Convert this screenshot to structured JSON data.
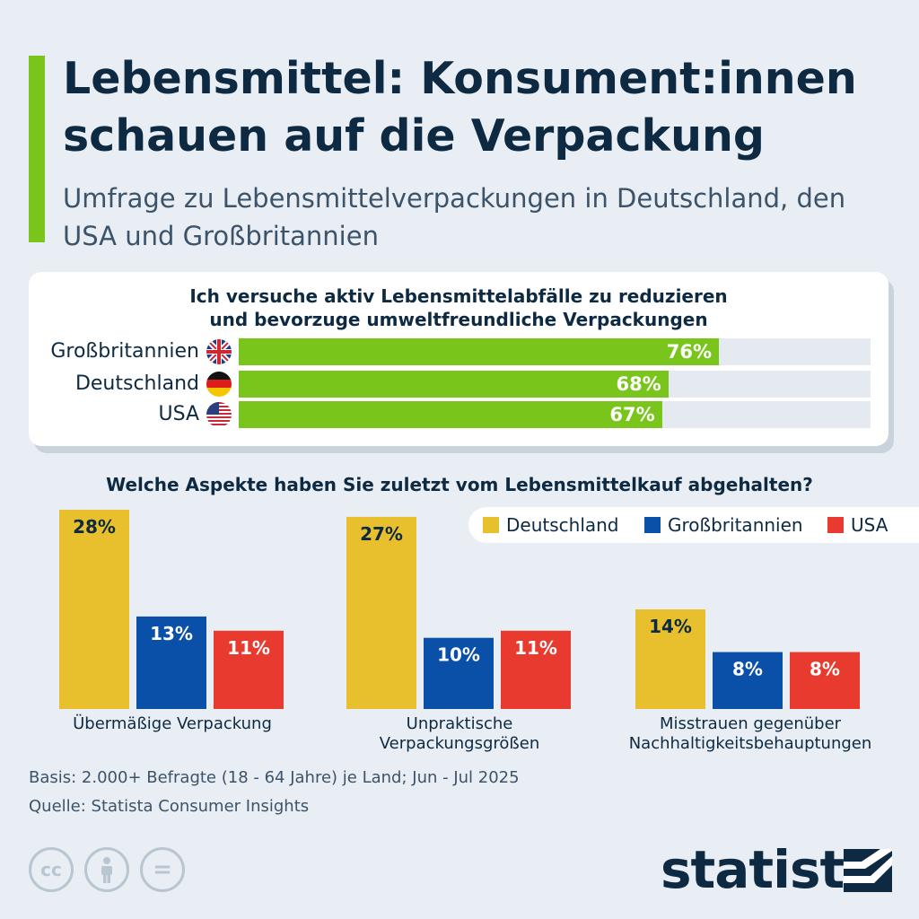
{
  "title": "Lebensmittel: Konsument:innen schauen auf die Verpackung",
  "subtitle": "Umfrage zu Lebensmittelverpackungen in Deutschland, den USA und Großbritannien",
  "colors": {
    "accent": "#7ac51c",
    "deutschland": "#e8bf2c",
    "grossbritannien": "#0a4fa8",
    "usa": "#e83a2e",
    "text": "#0d2a42"
  },
  "chart_data": [
    {
      "type": "bar",
      "orientation": "horizontal",
      "title": "Ich versuche aktiv Lebensmittelabfälle zu reduzieren und bevorzuge umweltfreundliche Verpackungen",
      "categories": [
        "Großbritannien",
        "Deutschland",
        "USA"
      ],
      "values": [
        76,
        68,
        67
      ],
      "value_labels": [
        "76%",
        "68%",
        "67%"
      ],
      "icons": [
        "flag-uk-icon",
        "flag-germany-icon",
        "flag-usa-icon"
      ],
      "xlim": [
        0,
        100
      ]
    },
    {
      "type": "bar",
      "title": "Welche Aspekte haben Sie zuletzt vom Lebensmittelkauf abgehalten?",
      "categories": [
        "Übermäßige Verpackung",
        "Unpraktische Verpackungsgrößen",
        "Misstrauen gegenüber Nachhaltigkeitsbehauptungen"
      ],
      "category_lines": [
        [
          "Übermäßige Verpackung"
        ],
        [
          "Unpraktische",
          "Verpackungsgrößen"
        ],
        [
          "Misstrauen gegenüber",
          "Nachhaltigkeitsbehauptungen"
        ]
      ],
      "series": [
        {
          "name": "Deutschland",
          "values": [
            28,
            27,
            14
          ],
          "labels": [
            "28%",
            "27%",
            "14%"
          ]
        },
        {
          "name": "Großbritannien",
          "values": [
            13,
            10,
            8
          ],
          "labels": [
            "13%",
            "10%",
            "8%"
          ]
        },
        {
          "name": "USA",
          "values": [
            11,
            11,
            8
          ],
          "labels": [
            "11%",
            "11%",
            "8%"
          ]
        }
      ],
      "legend": "top-right",
      "ylim": [
        0,
        28
      ]
    }
  ],
  "footer": {
    "basis": "Basis: 2.000+ Befragte (18 - 64 Jahre) je Land; Jun - Jul 2025",
    "source": "Quelle: Statista Consumer Insights"
  },
  "license_icons": {
    "cc": "cc",
    "nd": "="
  },
  "logo": "statista"
}
